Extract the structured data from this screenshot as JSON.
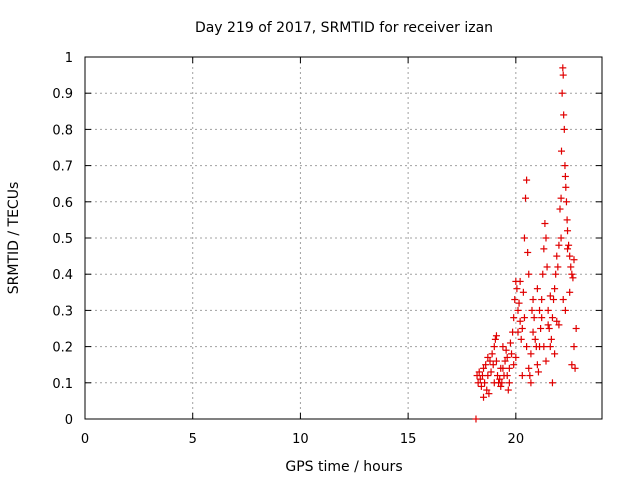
{
  "chart_data": {
    "type": "scatter",
    "title": "Day 219 of 2017, SRMTID for receiver izan",
    "xlabel": "GPS time / hours",
    "ylabel": "SRMTID / TECUs",
    "xlim": [
      0,
      24
    ],
    "ylim": [
      0,
      1
    ],
    "xticks": [
      0,
      5,
      10,
      15,
      20
    ],
    "yticks": [
      0,
      0.1,
      0.2,
      0.3,
      0.4,
      0.5,
      0.6,
      0.7,
      0.8,
      0.9,
      1
    ],
    "xtick_labels": [
      "0",
      "5",
      "10",
      "15",
      "20"
    ],
    "ytick_labels": [
      "0",
      "0.1",
      "0.2",
      "0.3",
      "0.4",
      "0.5",
      "0.6",
      "0.7",
      "0.8",
      "0.9",
      "1"
    ],
    "grid": true,
    "series": [
      {
        "name": "SRMTID",
        "color": "#e00000",
        "marker": "plus",
        "points": [
          [
            18.15,
            0.0
          ],
          [
            18.2,
            0.12
          ],
          [
            18.25,
            0.1
          ],
          [
            18.3,
            0.13
          ],
          [
            18.35,
            0.11
          ],
          [
            18.4,
            0.09
          ],
          [
            18.45,
            0.12
          ],
          [
            18.5,
            0.14
          ],
          [
            18.55,
            0.1
          ],
          [
            18.6,
            0.15
          ],
          [
            18.65,
            0.08
          ],
          [
            18.7,
            0.12
          ],
          [
            18.75,
            0.07
          ],
          [
            18.8,
            0.16
          ],
          [
            18.85,
            0.13
          ],
          [
            18.9,
            0.18
          ],
          [
            18.95,
            0.15
          ],
          [
            19.0,
            0.2
          ],
          [
            19.05,
            0.22
          ],
          [
            19.1,
            0.23
          ],
          [
            19.15,
            0.12
          ],
          [
            19.2,
            0.1
          ],
          [
            19.25,
            0.11
          ],
          [
            19.3,
            0.09
          ],
          [
            19.35,
            0.1
          ],
          [
            19.4,
            0.14
          ],
          [
            19.45,
            0.12
          ],
          [
            19.5,
            0.16
          ],
          [
            19.55,
            0.19
          ],
          [
            19.6,
            0.17
          ],
          [
            19.65,
            0.08
          ],
          [
            19.7,
            0.1
          ],
          [
            19.75,
            0.21
          ],
          [
            19.8,
            0.18
          ],
          [
            19.85,
            0.24
          ],
          [
            19.9,
            0.28
          ],
          [
            19.95,
            0.33
          ],
          [
            20.0,
            0.38
          ],
          [
            20.05,
            0.36
          ],
          [
            20.1,
            0.3
          ],
          [
            20.15,
            0.32
          ],
          [
            20.2,
            0.27
          ],
          [
            20.25,
            0.22
          ],
          [
            20.3,
            0.25
          ],
          [
            20.35,
            0.35
          ],
          [
            20.4,
            0.5
          ],
          [
            20.45,
            0.61
          ],
          [
            20.5,
            0.66
          ],
          [
            20.55,
            0.46
          ],
          [
            20.6,
            0.14
          ],
          [
            20.65,
            0.12
          ],
          [
            20.7,
            0.18
          ],
          [
            20.75,
            0.3
          ],
          [
            20.8,
            0.33
          ],
          [
            20.85,
            0.28
          ],
          [
            20.9,
            0.22
          ],
          [
            20.95,
            0.2
          ],
          [
            21.0,
            0.15
          ],
          [
            21.05,
            0.13
          ],
          [
            21.1,
            0.2
          ],
          [
            21.15,
            0.25
          ],
          [
            21.2,
            0.33
          ],
          [
            21.25,
            0.4
          ],
          [
            21.3,
            0.47
          ],
          [
            21.35,
            0.54
          ],
          [
            21.4,
            0.5
          ],
          [
            21.45,
            0.42
          ],
          [
            21.5,
            0.3
          ],
          [
            21.55,
            0.25
          ],
          [
            21.6,
            0.2
          ],
          [
            21.65,
            0.22
          ],
          [
            21.7,
            0.28
          ],
          [
            21.75,
            0.33
          ],
          [
            21.8,
            0.36
          ],
          [
            21.85,
            0.4
          ],
          [
            21.9,
            0.45
          ],
          [
            21.95,
            0.42
          ],
          [
            22.0,
            0.48
          ],
          [
            22.05,
            0.58
          ],
          [
            22.1,
            0.61
          ],
          [
            22.12,
            0.74
          ],
          [
            22.15,
            0.9
          ],
          [
            22.18,
            0.97
          ],
          [
            22.2,
            0.95
          ],
          [
            22.22,
            0.84
          ],
          [
            22.25,
            0.8
          ],
          [
            22.28,
            0.7
          ],
          [
            22.3,
            0.67
          ],
          [
            22.32,
            0.64
          ],
          [
            22.35,
            0.6
          ],
          [
            22.38,
            0.55
          ],
          [
            22.4,
            0.52
          ],
          [
            22.45,
            0.48
          ],
          [
            22.5,
            0.45
          ],
          [
            22.55,
            0.42
          ],
          [
            22.6,
            0.4
          ],
          [
            22.65,
            0.39
          ],
          [
            22.7,
            0.2
          ],
          [
            22.75,
            0.14
          ],
          [
            22.8,
            0.25
          ],
          [
            18.5,
            0.06
          ],
          [
            18.7,
            0.17
          ],
          [
            19.0,
            0.1
          ],
          [
            19.3,
            0.14
          ],
          [
            19.6,
            0.12
          ],
          [
            19.9,
            0.15
          ],
          [
            20.2,
            0.38
          ],
          [
            20.5,
            0.2
          ],
          [
            20.8,
            0.24
          ],
          [
            21.1,
            0.3
          ],
          [
            21.4,
            0.16
          ],
          [
            21.7,
            0.1
          ],
          [
            22.0,
            0.26
          ],
          [
            22.3,
            0.3
          ],
          [
            22.6,
            0.15
          ],
          [
            20.0,
            0.17
          ],
          [
            20.3,
            0.12
          ],
          [
            21.0,
            0.36
          ],
          [
            21.3,
            0.2
          ],
          [
            21.6,
            0.34
          ],
          [
            21.9,
            0.27
          ],
          [
            22.2,
            0.33
          ],
          [
            22.5,
            0.35
          ],
          [
            22.7,
            0.44
          ],
          [
            19.1,
            0.16
          ],
          [
            19.4,
            0.2
          ],
          [
            19.7,
            0.14
          ],
          [
            20.1,
            0.24
          ],
          [
            20.4,
            0.28
          ],
          [
            20.6,
            0.4
          ],
          [
            20.7,
            0.1
          ],
          [
            21.2,
            0.28
          ],
          [
            21.5,
            0.26
          ],
          [
            21.8,
            0.18
          ],
          [
            22.1,
            0.5
          ],
          [
            22.4,
            0.47
          ]
        ]
      }
    ]
  }
}
